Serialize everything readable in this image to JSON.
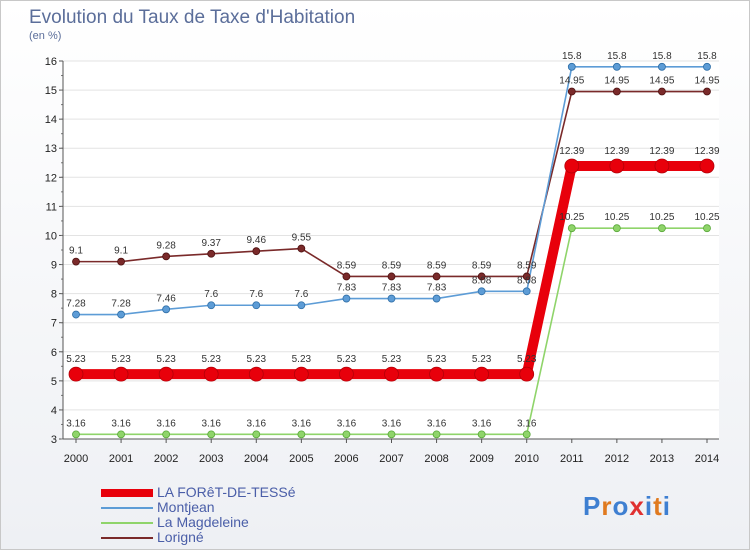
{
  "chart_data": {
    "type": "line",
    "title": "Evolution du Taux de Taxe d'Habitation",
    "subtitle": "(en %)",
    "categories": [
      "2000",
      "2001",
      "2002",
      "2003",
      "2004",
      "2005",
      "2006",
      "2007",
      "2008",
      "2009",
      "2010",
      "2011",
      "2012",
      "2013",
      "2014"
    ],
    "ylim": [
      3,
      16
    ],
    "yticks": [
      "3",
      "4",
      "5",
      "6",
      "7",
      "8",
      "9",
      "10",
      "11",
      "12",
      "13",
      "14",
      "15",
      "16"
    ],
    "grid": true,
    "series": [
      {
        "name": "LA FORêT-DE-TESSé",
        "color": "#e8000b",
        "width": 10,
        "marker": 7,
        "values": [
          5.23,
          5.23,
          5.23,
          5.23,
          5.23,
          5.23,
          5.23,
          5.23,
          5.23,
          5.23,
          5.23,
          12.39,
          12.39,
          12.39,
          12.39
        ],
        "labels": [
          "5.23",
          "5.23",
          "5.23",
          "5.23",
          "5.23",
          "5.23",
          "5.23",
          "5.23",
          "5.23",
          "5.23",
          "5.23",
          "12.39",
          "12.39",
          "12.39",
          "12.39"
        ]
      },
      {
        "name": "Montjean",
        "color": "#5d9cd6",
        "width": 1.6,
        "marker": 3.5,
        "values": [
          7.28,
          7.28,
          7.46,
          7.6,
          7.6,
          7.6,
          7.83,
          7.83,
          7.83,
          8.08,
          8.08,
          15.8,
          15.8,
          15.8,
          15.8
        ],
        "labels": [
          "7.28",
          "7.28",
          "7.46",
          "7.6",
          "7.6",
          "7.6",
          "7.83",
          "7.83",
          "7.83",
          "8.08",
          "8.08",
          "15.8",
          "15.8",
          "15.8",
          "15.8"
        ]
      },
      {
        "name": "La Magdeleine",
        "color": "#8fd46a",
        "width": 1.6,
        "marker": 3.5,
        "values": [
          3.16,
          3.16,
          3.16,
          3.16,
          3.16,
          3.16,
          3.16,
          3.16,
          3.16,
          3.16,
          3.16,
          10.25,
          10.25,
          10.25,
          10.25
        ],
        "labels": [
          "3.16",
          "3.16",
          "3.16",
          "3.16",
          "3.16",
          "3.16",
          "3.16",
          "3.16",
          "3.16",
          "3.16",
          "3.16",
          "10.25",
          "10.25",
          "10.25",
          "10.25"
        ]
      },
      {
        "name": "Lorigné",
        "color": "#7a2a2a",
        "width": 1.6,
        "marker": 3.5,
        "values": [
          9.1,
          9.1,
          9.28,
          9.37,
          9.46,
          9.55,
          8.59,
          8.59,
          8.59,
          8.59,
          8.59,
          14.95,
          14.95,
          14.95,
          14.95
        ],
        "labels": [
          "9.1",
          "9.1",
          "9.28",
          "9.37",
          "9.46",
          "9.55",
          "8.59",
          "8.59",
          "8.59",
          "8.59",
          "8.59",
          "14.95",
          "14.95",
          "14.95",
          "14.95"
        ]
      }
    ]
  },
  "logo": {
    "text": "Proxiti",
    "letters": [
      "P",
      "r",
      "o",
      "x",
      "i",
      "t",
      "i"
    ],
    "colors": [
      "#3e7fd1",
      "#e07a1f",
      "#3e7fd1",
      "#e03030",
      "#3e7fd1",
      "#e07a1f",
      "#3e7fd1"
    ]
  }
}
